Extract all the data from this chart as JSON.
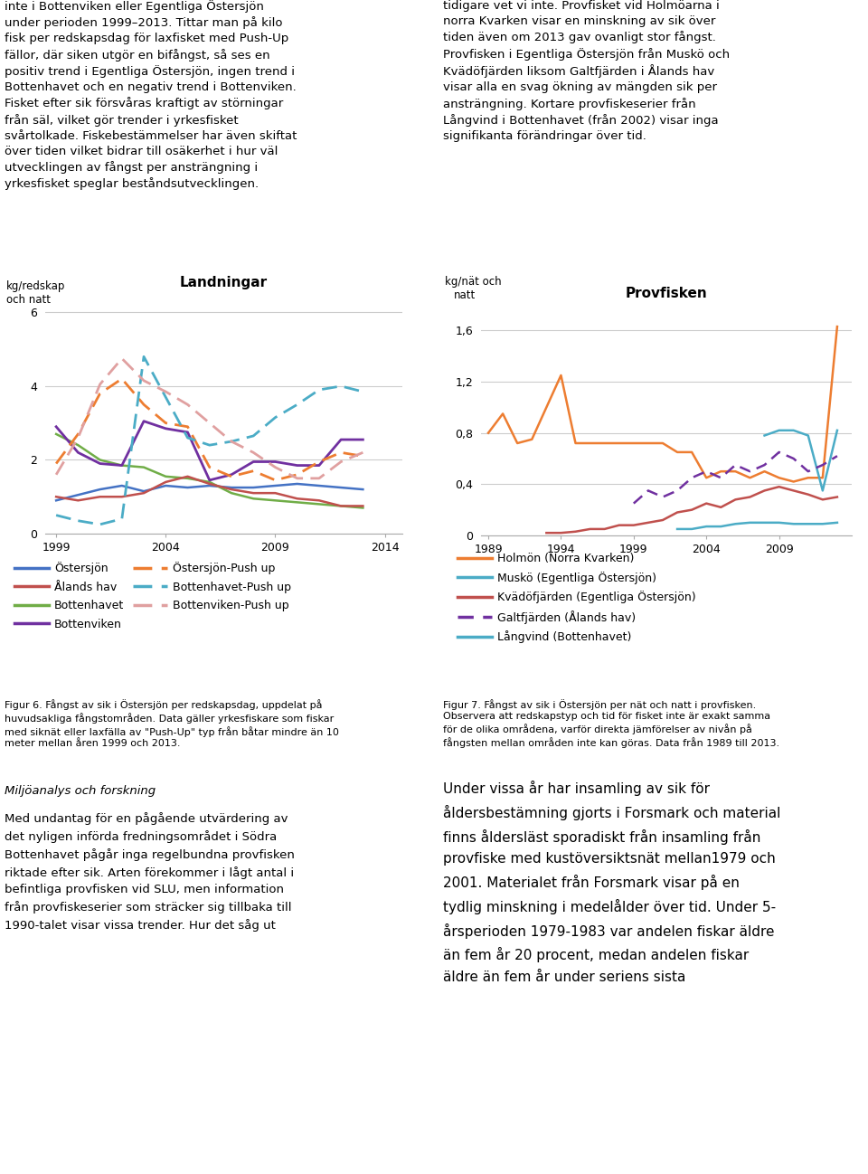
{
  "left_chart": {
    "title": "Landningar",
    "ylabel1": "kg/redskap",
    "ylabel2": "och natt",
    "ylim": [
      0,
      6.5
    ],
    "yticks": [
      0,
      2,
      4,
      6
    ],
    "xlim": [
      1998.5,
      2014.8
    ],
    "xticks": [
      1999,
      2004,
      2009,
      2014
    ],
    "border_color": "#4BACC6",
    "series": {
      "Östersjön": {
        "years": [
          1999,
          2000,
          2001,
          2002,
          2003,
          2004,
          2005,
          2006,
          2007,
          2008,
          2009,
          2010,
          2011,
          2012,
          2013
        ],
        "values": [
          0.9,
          1.05,
          1.2,
          1.3,
          1.15,
          1.3,
          1.25,
          1.3,
          1.25,
          1.25,
          1.3,
          1.35,
          1.3,
          1.25,
          1.2
        ],
        "color": "#4472C4",
        "style": "solid",
        "linewidth": 1.8
      },
      "Bottenhavet": {
        "years": [
          1999,
          2000,
          2001,
          2002,
          2003,
          2004,
          2005,
          2006,
          2007,
          2008,
          2009,
          2010,
          2011,
          2012,
          2013
        ],
        "values": [
          2.7,
          2.4,
          2.0,
          1.85,
          1.8,
          1.55,
          1.5,
          1.4,
          1.1,
          0.95,
          0.9,
          0.85,
          0.8,
          0.75,
          0.7
        ],
        "color": "#70AD47",
        "style": "solid",
        "linewidth": 1.8
      },
      "Ålands hav": {
        "years": [
          1999,
          2000,
          2001,
          2002,
          2003,
          2004,
          2005,
          2006,
          2007,
          2008,
          2009,
          2010,
          2011,
          2012,
          2013
        ],
        "values": [
          1.0,
          0.9,
          1.0,
          1.0,
          1.1,
          1.4,
          1.55,
          1.35,
          1.2,
          1.1,
          1.1,
          0.95,
          0.9,
          0.75,
          0.75
        ],
        "color": "#C0504D",
        "style": "solid",
        "linewidth": 1.8
      },
      "Bottenviken": {
        "years": [
          1999,
          2000,
          2001,
          2002,
          2003,
          2004,
          2005,
          2006,
          2007,
          2008,
          2009,
          2010,
          2011,
          2012,
          2013
        ],
        "values": [
          2.9,
          2.2,
          1.9,
          1.85,
          3.05,
          2.85,
          2.75,
          1.45,
          1.6,
          1.95,
          1.95,
          1.85,
          1.85,
          2.55,
          2.55
        ],
        "color": "#7030A0",
        "style": "solid",
        "linewidth": 2.0
      },
      "Östersjön-Push up": {
        "years": [
          1999,
          2000,
          2001,
          2002,
          2003,
          2004,
          2005,
          2006,
          2007,
          2008,
          2009,
          2010,
          2011,
          2012,
          2013
        ],
        "values": [
          1.9,
          2.7,
          3.8,
          4.2,
          3.5,
          3.0,
          2.9,
          1.8,
          1.55,
          1.7,
          1.45,
          1.6,
          1.95,
          2.2,
          2.1
        ],
        "color": "#ED7D31",
        "style": "dashed",
        "linewidth": 2.0
      },
      "Bottenhavet-Push up": {
        "years": [
          1999,
          2000,
          2001,
          2002,
          2003,
          2004,
          2005,
          2006,
          2007,
          2008,
          2009,
          2010,
          2011,
          2012,
          2013
        ],
        "values": [
          0.5,
          0.35,
          0.25,
          0.4,
          4.8,
          3.7,
          2.6,
          2.4,
          2.5,
          2.65,
          3.15,
          3.5,
          3.9,
          4.0,
          3.85
        ],
        "color": "#4BACC6",
        "style": "dashed",
        "linewidth": 2.0
      },
      "Bottenviken-Push up": {
        "years": [
          1999,
          2000,
          2001,
          2002,
          2003,
          2004,
          2005,
          2006,
          2007,
          2008,
          2009,
          2010,
          2011,
          2012,
          2013
        ],
        "values": [
          1.6,
          2.6,
          4.05,
          4.75,
          4.15,
          3.85,
          3.5,
          3.0,
          2.5,
          2.2,
          1.8,
          1.5,
          1.5,
          1.95,
          2.2
        ],
        "color": "#E0A0A0",
        "style": "dashed",
        "linewidth": 2.0
      }
    }
  },
  "right_chart": {
    "title": "Provfisken",
    "ylabel1": "kg/nät och",
    "ylabel2": "natt",
    "ylim": [
      0,
      1.8
    ],
    "yticks": [
      0,
      0.4,
      0.8,
      1.2,
      1.6
    ],
    "xlim": [
      1988.5,
      2014.0
    ],
    "xticks": [
      1989,
      1994,
      1999,
      2004,
      2009
    ],
    "border_color": "#C0504D",
    "series": {
      "Holmön (Norra Kvarken)": {
        "years": [
          1989,
          1990,
          1991,
          1992,
          1993,
          1994,
          1995,
          1996,
          1997,
          1998,
          1999,
          2000,
          2001,
          2002,
          2003,
          2004,
          2005,
          2006,
          2007,
          2008,
          2009,
          2010,
          2011,
          2012,
          2013
        ],
        "values": [
          0.8,
          0.95,
          0.72,
          0.75,
          1.0,
          1.25,
          0.72,
          0.72,
          0.72,
          0.72,
          0.72,
          0.72,
          0.72,
          0.65,
          0.65,
          0.45,
          0.5,
          0.5,
          0.45,
          0.5,
          0.45,
          0.42,
          0.45,
          0.45,
          1.63
        ],
        "color": "#ED7D31",
        "style": "solid",
        "linewidth": 1.8
      },
      "Muskö (Egentliga Östersjön)": {
        "years": [
          2008,
          2009,
          2010,
          2011,
          2012,
          2013
        ],
        "values": [
          0.78,
          0.82,
          0.82,
          0.78,
          0.35,
          0.82
        ],
        "color": "#4BACC6",
        "style": "solid",
        "linewidth": 1.8
      },
      "Kvädöfjärden (Egentliga Östersjön)": {
        "years": [
          1993,
          1994,
          1995,
          1996,
          1997,
          1998,
          1999,
          2000,
          2001,
          2002,
          2003,
          2004,
          2005,
          2006,
          2007,
          2008,
          2009,
          2010,
          2011,
          2012,
          2013
        ],
        "values": [
          0.02,
          0.02,
          0.03,
          0.05,
          0.05,
          0.08,
          0.08,
          0.1,
          0.12,
          0.18,
          0.2,
          0.25,
          0.22,
          0.28,
          0.3,
          0.35,
          0.38,
          0.35,
          0.32,
          0.28,
          0.3
        ],
        "color": "#C0504D",
        "style": "solid",
        "linewidth": 1.8
      },
      "Galtfjärden (Ålands hav)": {
        "years": [
          1999,
          2000,
          2001,
          2002,
          2003,
          2004,
          2005,
          2006,
          2007,
          2008,
          2009,
          2010,
          2011,
          2012,
          2013
        ],
        "values": [
          0.25,
          0.35,
          0.3,
          0.35,
          0.45,
          0.5,
          0.45,
          0.55,
          0.5,
          0.55,
          0.65,
          0.6,
          0.5,
          0.55,
          0.62
        ],
        "color": "#7030A0",
        "style": "dashed",
        "linewidth": 1.8
      },
      "Långvind (Bottenhavet)": {
        "years": [
          2002,
          2003,
          2004,
          2005,
          2006,
          2007,
          2008,
          2009,
          2010,
          2011,
          2012,
          2013
        ],
        "values": [
          0.05,
          0.05,
          0.07,
          0.07,
          0.09,
          0.1,
          0.1,
          0.1,
          0.09,
          0.09,
          0.09,
          0.1
        ],
        "color": "#4BACC6",
        "style": "solid",
        "linewidth": 1.8
      }
    }
  },
  "legend_left": [
    {
      "label": "Östersjön",
      "color": "#4472C4",
      "style": "solid"
    },
    {
      "label": "Ålands hav",
      "color": "#C0504D",
      "style": "solid"
    },
    {
      "label": "Bottenhavet",
      "color": "#70AD47",
      "style": "solid"
    },
    {
      "label": "Bottenviken",
      "color": "#7030A0",
      "style": "solid"
    },
    {
      "label": "Östersjön-Push up",
      "color": "#ED7D31",
      "style": "dashed"
    },
    {
      "label": "Bottenhavet-Push up",
      "color": "#4BACC6",
      "style": "dashed"
    },
    {
      "label": "Bottenviken-Push up",
      "color": "#E0A0A0",
      "style": "dashed"
    }
  ],
  "legend_right": [
    {
      "label": "Holmön (Norra Kvarken)",
      "color": "#ED7D31",
      "style": "solid"
    },
    {
      "label": "Muskö (Egentliga Östersjön)",
      "color": "#4BACC6",
      "style": "solid"
    },
    {
      "label": "Kvädöfjärden (Egentliga Östersjön)",
      "color": "#C0504D",
      "style": "solid"
    },
    {
      "label": "Galtfjärden (Ålands hav)",
      "color": "#7030A0",
      "style": "dashed"
    },
    {
      "label": "Långvind (Bottenhavet)",
      "color": "#4BACC6",
      "style": "solid"
    }
  ],
  "caption_left": "Figur 6. Fångst av sik i Östersjön per redskapsdag, uppdelat på\nhuvudsakliga fångstområden. Data gäller yrkesfiskare som fiskar\nmed siknät eller laxfälla av \"Push-Up\" typ från båtar mindre än 10\nmeter mellan åren 1999 och 2013.",
  "caption_right": "Figur 7. Fångst av sik i Östersjön per nät och natt i provfisken.\nObservera att redskapstyp och tid för fisket inte är exakt samma\nför de olika områdena, varför direkta jämförelser av nivån på\nfångsten mellan områden inte kan göras. Data från 1989 till 2013.",
  "text_top_left": "inte i Bottenviken eller Egentliga Östersjön\nunder perioden 1999–2013. Tittar man på kilo\nfisk per redskapsdag för laxfisket med Push-Up\nfällor, där siken utgör en bifångst, så ses en\npositiv trend i Egentliga Östersjön, ingen trend i\nBottenhavet och en negativ trend i Bottenviken.\nFisket efter sik försvåras kraftigt av störningar\nfrån säl, vilket gör trender i yrkesfisket\nsvårtolkade. Fiskebestämmelser har även skiftat\növer tiden vilket bidrar till osäkerhet i hur väl\nutvecklingen av fångst per ansträngning i\nyrkesfisket speglar beståndsutvecklingen.",
  "text_top_right": "tidigare vet vi inte. Provfisket vid Holmöarna i\nnorra Kvarken visar en minskning av sik över\ntiden även om 2013 gav ovanligt stor fångst.\nProvfisken i Egentliga Östersjön från Muskö och\nKvädöfjärden liksom Galtfjärden i Ålands hav\nvisar alla en svag ökning av mängden sik per\nansträngning. Kortare provfiskeserier från\nLångvind i Bottenhavet (från 2002) visar inga\nsignifikanta förändringar över tid.",
  "text_miljo_title": "Miljöanalys och forskning",
  "text_miljo_body": "Med undantag för en pågående utvärdering av\ndet nyligen införda fredningsområdet i Södra\nBottenhavet pågår inga regelbundna provfisken\nriktade efter sik. Arten förekommer i lågt antal i\nbefintliga provfisken vid SLU, men information\nfrån provfiskeserier som sträcker sig tillbaka till\n1990-talet visar vissa trender. Hur det såg ut",
  "text_bottom_right": "Under vissa år har insamling av sik för\nåldersbestämning gjorts i Forsmark och material\nfinns åldersläst sporadiskt från insamling från\nprovfiske med kustöversiktsnät mellan1979 och\n2001. Materialet från Forsmark visar på en\ntydlig minskning i medelålder över tid. Under 5-\nårsperioden 1979-1983 var andelen fiskar äldre\nän fem år 20 procent, medan andelen fiskar\näldre än fem år under seriens sista"
}
